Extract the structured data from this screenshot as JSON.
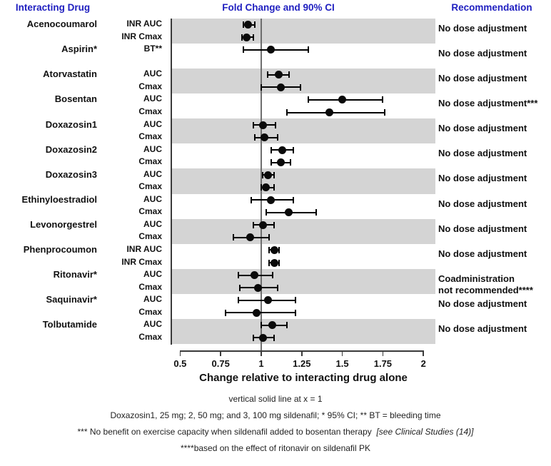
{
  "headers": {
    "interacting_drug": "Interacting Drug",
    "fold_change": "Fold Change and 90% CI",
    "recommendation": "Recommendation"
  },
  "colors": {
    "header_blue": "#2020c0",
    "band_gray": "#d4d4d4",
    "marker_black": "#0a0a0a",
    "reference_line_gray": "#6e6e6e",
    "axis_dark": "#3a3a3a"
  },
  "chart_data": {
    "type": "forest",
    "title": "Fold Change and 90% CI",
    "xlabel": "Change relative to interacting drug alone",
    "x_ticks": [
      "0.5",
      "0.75",
      "1",
      "1.25",
      "1.5",
      "1.75",
      "2"
    ],
    "x_tick_values": [
      0.5,
      0.75,
      1,
      1.25,
      1.5,
      1.75,
      2
    ],
    "xlim": [
      0.5,
      2
    ],
    "reference_line_x": 1,
    "ci_level": "90% CI",
    "groups": [
      {
        "drug": "Acenocoumarol",
        "shaded": true,
        "recommendation_lines": [
          "No dose adjustment"
        ],
        "rows": [
          {
            "label": "INR AUC",
            "value": 0.92,
            "lo": 0.89,
            "hi": 0.96
          },
          {
            "label": "INR Cmax",
            "value": 0.91,
            "lo": 0.88,
            "hi": 0.95
          }
        ]
      },
      {
        "drug": "Aspirin*",
        "shaded": false,
        "recommendation_lines": [
          "No dose adjustment"
        ],
        "rows": [
          {
            "label": "BT**",
            "value": 1.06,
            "lo": 0.89,
            "hi": 1.29
          }
        ]
      },
      {
        "drug": "Atorvastatin",
        "shaded": true,
        "recommendation_lines": [
          "No dose adjustment"
        ],
        "rows": [
          {
            "label": "AUC",
            "value": 1.11,
            "lo": 1.04,
            "hi": 1.17
          },
          {
            "label": "Cmax",
            "value": 1.12,
            "lo": 1.0,
            "hi": 1.24
          }
        ]
      },
      {
        "drug": "Bosentan",
        "shaded": false,
        "recommendation_lines": [
          "No dose adjustment***"
        ],
        "rows": [
          {
            "label": "AUC",
            "value": 1.5,
            "lo": 1.29,
            "hi": 1.75
          },
          {
            "label": "Cmax",
            "value": 1.42,
            "lo": 1.16,
            "hi": 1.76
          }
        ]
      },
      {
        "drug": "Doxazosin1",
        "shaded": true,
        "recommendation_lines": [
          "No dose adjustment"
        ],
        "rows": [
          {
            "label": "AUC",
            "value": 1.01,
            "lo": 0.95,
            "hi": 1.09
          },
          {
            "label": "Cmax",
            "value": 1.02,
            "lo": 0.96,
            "hi": 1.1
          }
        ]
      },
      {
        "drug": "Doxazosin2",
        "shaded": false,
        "recommendation_lines": [
          "No dose adjustment"
        ],
        "rows": [
          {
            "label": "AUC",
            "value": 1.13,
            "lo": 1.06,
            "hi": 1.2
          },
          {
            "label": "Cmax",
            "value": 1.12,
            "lo": 1.06,
            "hi": 1.18
          }
        ]
      },
      {
        "drug": "Doxazosin3",
        "shaded": true,
        "recommendation_lines": [
          "No dose adjustment"
        ],
        "rows": [
          {
            "label": "AUC",
            "value": 1.04,
            "lo": 1.01,
            "hi": 1.08
          },
          {
            "label": "Cmax",
            "value": 1.03,
            "lo": 1.0,
            "hi": 1.08
          }
        ]
      },
      {
        "drug": "Ethinyloestradiol",
        "shaded": false,
        "recommendation_lines": [
          "No dose adjustment"
        ],
        "rows": [
          {
            "label": "AUC",
            "value": 1.06,
            "lo": 0.94,
            "hi": 1.2
          },
          {
            "label": "Cmax",
            "value": 1.17,
            "lo": 1.03,
            "hi": 1.34
          }
        ]
      },
      {
        "drug": "Levonorgestrel",
        "shaded": true,
        "recommendation_lines": [
          "No dose adjustment"
        ],
        "rows": [
          {
            "label": "AUC",
            "value": 1.01,
            "lo": 0.95,
            "hi": 1.08
          },
          {
            "label": "Cmax",
            "value": 0.93,
            "lo": 0.83,
            "hi": 1.05
          }
        ]
      },
      {
        "drug": "Phenprocoumon",
        "shaded": false,
        "recommendation_lines": [
          "No dose adjustment"
        ],
        "rows": [
          {
            "label": "INR AUC",
            "value": 1.08,
            "lo": 1.05,
            "hi": 1.11
          },
          {
            "label": "INR Cmax",
            "value": 1.08,
            "lo": 1.05,
            "hi": 1.11
          }
        ]
      },
      {
        "drug": "Ritonavir*",
        "shaded": true,
        "recommendation_lines": [
          "Coadministration",
          "not recommended****"
        ],
        "rows": [
          {
            "label": "AUC",
            "value": 0.96,
            "lo": 0.86,
            "hi": 1.07
          },
          {
            "label": "Cmax",
            "value": 0.98,
            "lo": 0.87,
            "hi": 1.1
          }
        ]
      },
      {
        "drug": "Saquinavir*",
        "shaded": false,
        "recommendation_lines": [
          "No dose adjustment"
        ],
        "rows": [
          {
            "label": "AUC",
            "value": 1.04,
            "lo": 0.86,
            "hi": 1.21
          },
          {
            "label": "Cmax",
            "value": 0.97,
            "lo": 0.78,
            "hi": 1.21
          }
        ]
      },
      {
        "drug": "Tolbutamide",
        "shaded": true,
        "recommendation_lines": [
          "No dose adjustment"
        ],
        "rows": [
          {
            "label": "AUC",
            "value": 1.07,
            "lo": 1.0,
            "hi": 1.16
          },
          {
            "label": "Cmax",
            "value": 1.01,
            "lo": 0.95,
            "hi": 1.08
          }
        ]
      }
    ]
  },
  "axis_note": "vertical solid line at x = 1",
  "footnotes": {
    "line1": "Doxazosin1, 25 mg; 2, 50 mg; and 3, 100 mg sildenafil; * 95% CI; ** BT = bleeding time",
    "line2_plain": "*** No benefit on exercise capacity when sildenafil added to bosentan therapy",
    "line2_italic": "[see Clinical Studies (14)]",
    "line3": "****based on the effect of ritonavir on sildenafil PK"
  }
}
